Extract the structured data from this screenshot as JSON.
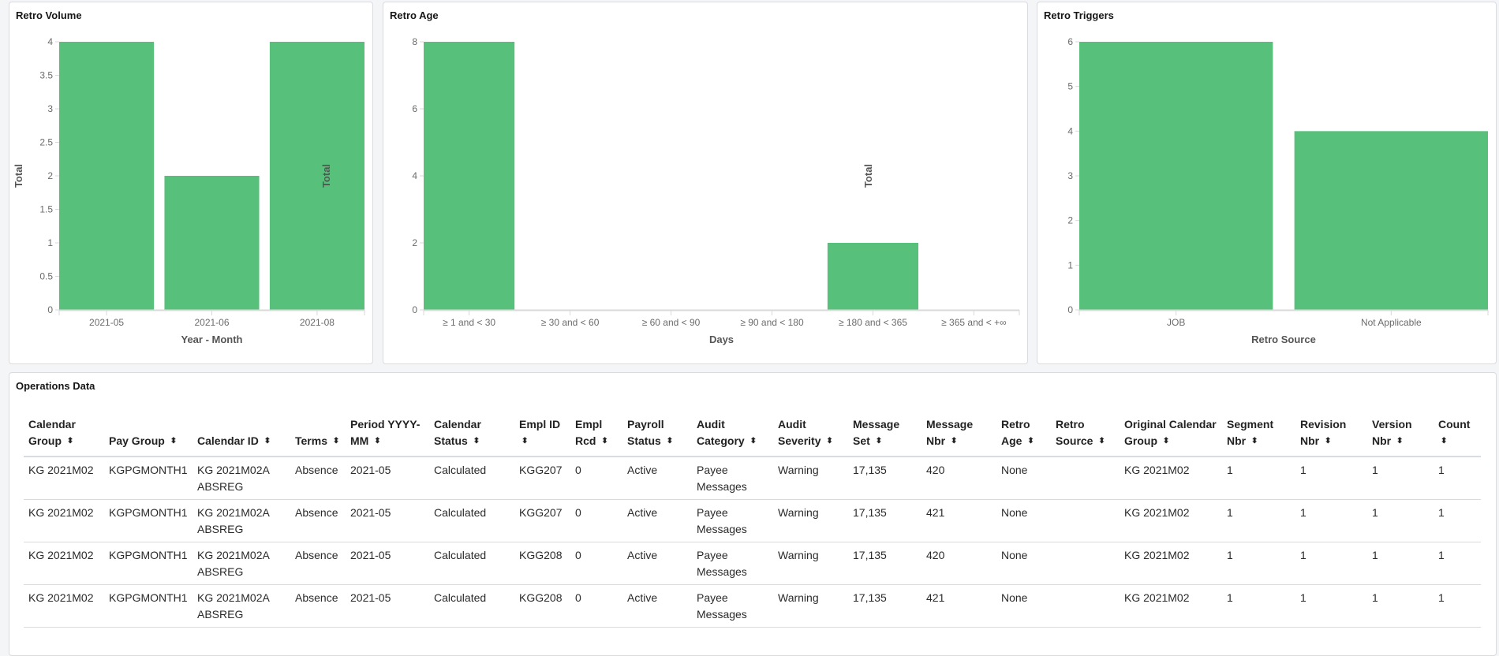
{
  "panels": {
    "volume": {
      "title": "Retro Volume"
    },
    "age": {
      "title": "Retro Age"
    },
    "triggers": {
      "title": "Retro Triggers"
    },
    "operations": {
      "title": "Operations Data"
    }
  },
  "colors": {
    "bar": "#57c17b",
    "axis": "#d9d9d9",
    "tick_text": "#6b6b6b",
    "axis_title": "#555555"
  },
  "chart_data": [
    {
      "type": "bar",
      "title": "Retro Volume",
      "xlabel": "Year - Month",
      "ylabel": "Total",
      "categories": [
        "2021-05",
        "2021-06",
        "2021-08"
      ],
      "values": [
        4,
        2,
        4
      ],
      "ylim": [
        0,
        4
      ],
      "yticks": [
        "0",
        "0.5",
        "1",
        "1.5",
        "2",
        "2.5",
        "3",
        "3.5",
        "4"
      ],
      "grid": false
    },
    {
      "type": "bar",
      "title": "Retro Age",
      "xlabel": "Days",
      "ylabel": "Total",
      "categories": [
        "≥ 1 and < 30",
        "≥ 30 and < 60",
        "≥ 60 and < 90",
        "≥ 90 and < 180",
        "≥ 180 and < 365",
        "≥ 365 and < +∞"
      ],
      "values": [
        8,
        0,
        0,
        0,
        2,
        0
      ],
      "ylim": [
        0,
        8
      ],
      "yticks": [
        "0",
        "2",
        "4",
        "6",
        "8"
      ],
      "grid": false
    },
    {
      "type": "bar",
      "title": "Retro Triggers",
      "xlabel": "Retro Source",
      "ylabel": "Total",
      "categories": [
        "JOB",
        "Not Applicable"
      ],
      "values": [
        6,
        4
      ],
      "ylim": [
        0,
        6
      ],
      "yticks": [
        "0",
        "1",
        "2",
        "3",
        "4",
        "5",
        "6"
      ],
      "grid": false
    }
  ],
  "table": {
    "sort_icon": "sort-up-down-icon",
    "columns": [
      [
        "Calendar",
        "Group"
      ],
      [
        "Pay Group"
      ],
      [
        "Calendar ID"
      ],
      [
        "Terms"
      ],
      [
        "Period",
        "YYYY-MM"
      ],
      [
        "Calendar",
        "Status"
      ],
      [
        "Empl ID"
      ],
      [
        "Empl",
        "Rcd"
      ],
      [
        "Payroll",
        "Status"
      ],
      [
        "Audit",
        "Category"
      ],
      [
        "Audit",
        "Severity"
      ],
      [
        "Message",
        "Set"
      ],
      [
        "Message",
        "Nbr"
      ],
      [
        "Retro",
        "Age"
      ],
      [
        "Retro",
        "Source"
      ],
      [
        "Original",
        "Calendar Group"
      ],
      [
        "Segment",
        "Nbr"
      ],
      [
        "Revision",
        "Nbr"
      ],
      [
        "Version",
        "Nbr"
      ],
      [
        "Count"
      ]
    ],
    "rows": [
      [
        "KG 2021M02",
        "KGPGMONTH1",
        "KG 2021M02A ABSREG",
        "Absence",
        "2021-05",
        "Calculated",
        "KGG207",
        "0",
        "Active",
        "Payee Messages",
        "Warning",
        "17,135",
        "420",
        "None",
        "",
        "KG 2021M02",
        "1",
        "1",
        "1",
        "1"
      ],
      [
        "KG 2021M02",
        "KGPGMONTH1",
        "KG 2021M02A ABSREG",
        "Absence",
        "2021-05",
        "Calculated",
        "KGG207",
        "0",
        "Active",
        "Payee Messages",
        "Warning",
        "17,135",
        "421",
        "None",
        "",
        "KG 2021M02",
        "1",
        "1",
        "1",
        "1"
      ],
      [
        "KG 2021M02",
        "KGPGMONTH1",
        "KG 2021M02A ABSREG",
        "Absence",
        "2021-05",
        "Calculated",
        "KGG208",
        "0",
        "Active",
        "Payee Messages",
        "Warning",
        "17,135",
        "420",
        "None",
        "",
        "KG 2021M02",
        "1",
        "1",
        "1",
        "1"
      ],
      [
        "KG 2021M02",
        "KGPGMONTH1",
        "KG 2021M02A ABSREG",
        "Absence",
        "2021-05",
        "Calculated",
        "KGG208",
        "0",
        "Active",
        "Payee Messages",
        "Warning",
        "17,135",
        "421",
        "None",
        "",
        "KG 2021M02",
        "1",
        "1",
        "1",
        "1"
      ]
    ]
  }
}
